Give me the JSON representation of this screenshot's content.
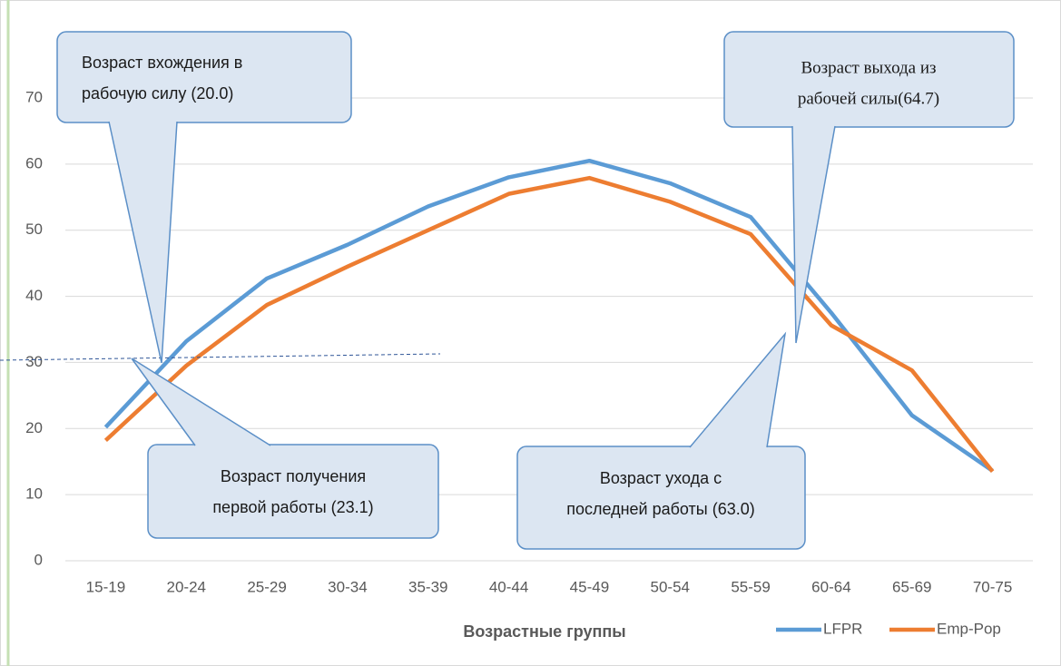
{
  "chart_data": {
    "type": "line",
    "x_label": "Возрастные группы",
    "categories": [
      "15-19",
      "20-24",
      "25-29",
      "30-34",
      "35-39",
      "40-44",
      "45-49",
      "50-54",
      "55-59",
      "60-64",
      "65-69",
      "70-75"
    ],
    "series": [
      {
        "name": "LFPR",
        "color": "#5b9bd5",
        "values": [
          20.2,
          33.2,
          42.7,
          47.8,
          53.6,
          58.0,
          60.5,
          57.1,
          52.0,
          37.5,
          22.0,
          13.6
        ]
      },
      {
        "name": "Emp-Pop",
        "color": "#ed7d31",
        "values": [
          18.2,
          29.5,
          38.7,
          44.5,
          50.0,
          55.5,
          57.9,
          54.3,
          49.4,
          35.6,
          28.8,
          13.5
        ]
      }
    ],
    "ylim": [
      0,
      70
    ],
    "yticks": [
      0,
      10,
      20,
      30,
      40,
      50,
      60,
      70
    ],
    "grid": true,
    "annotations": [
      {
        "lines": [
          "Возраст вхождения в",
          "рабочую силу (20.0)"
        ]
      },
      {
        "lines": [
          "Возраст получения",
          "первой работы (23.1)"
        ]
      },
      {
        "lines": [
          "Возраст ухода с",
          "последней работы (63.0)"
        ]
      },
      {
        "lines": [
          "Возраст выхода из",
          "рабочей силы(64.7)"
        ]
      }
    ]
  }
}
